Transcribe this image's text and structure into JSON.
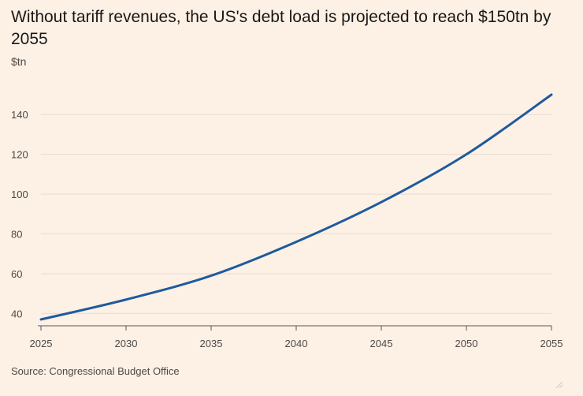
{
  "header": {
    "title": "Without tariff revenues, the US's debt load is projected to reach $150tn by 2055",
    "unit": "$tn"
  },
  "footer": {
    "source": "Source: Congressional Budget Office"
  },
  "colors": {
    "background": "#fdf1e6",
    "line": "#1f5a9c",
    "grid": "#e8dcd1",
    "axis": "#5a5550"
  },
  "chart_data": {
    "type": "line",
    "title": "Without tariff revenues, the US's debt load is projected to reach $150tn by 2055",
    "ylabel": "$tn",
    "xlabel": "",
    "xlim": [
      2025,
      2055
    ],
    "ylim": [
      35,
      150
    ],
    "xticks": [
      "2025",
      "2030",
      "2035",
      "2040",
      "2045",
      "2050",
      "2055"
    ],
    "yticks": [
      "40",
      "60",
      "80",
      "100",
      "120",
      "140"
    ],
    "grid": true,
    "legend": "none",
    "series": [
      {
        "x": [
          2025,
          2030,
          2035,
          2040,
          2045,
          2050,
          2055
        ],
        "y": [
          37,
          47,
          59,
          76,
          96,
          120,
          150
        ]
      }
    ]
  }
}
